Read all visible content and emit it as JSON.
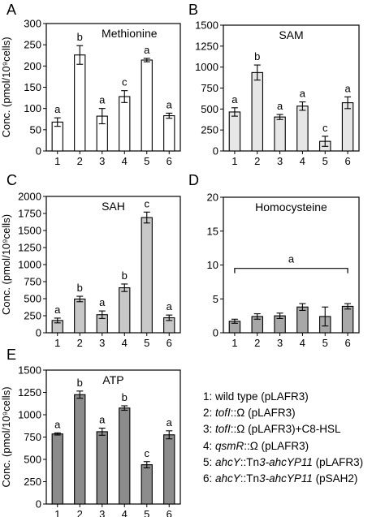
{
  "chart_data": [
    {
      "panel": "A",
      "type": "bar",
      "title": "Methionine",
      "categories": [
        "1",
        "2",
        "3",
        "4",
        "5",
        "6"
      ],
      "values": [
        68,
        226,
        82,
        128,
        214,
        83
      ],
      "errors": [
        10,
        22,
        18,
        14,
        4,
        6
      ],
      "letters": [
        "a",
        "b",
        "a",
        "c",
        "a",
        "a"
      ],
      "ylabel": "Conc. (pmol/10⁹cells)",
      "ylim": [
        0,
        300
      ],
      "yticks": [
        0,
        50,
        100,
        150,
        200,
        250,
        300
      ],
      "bar_color": "#ffffff",
      "grid": false
    },
    {
      "panel": "B",
      "type": "bar",
      "title": "SAM",
      "categories": [
        "1",
        "2",
        "3",
        "4",
        "5",
        "6"
      ],
      "values": [
        465,
        935,
        405,
        535,
        115,
        575
      ],
      "errors": [
        50,
        90,
        30,
        50,
        60,
        70
      ],
      "letters": [
        "a",
        "b",
        "a",
        "a",
        "c",
        "a"
      ],
      "ylabel": "",
      "ylim": [
        0,
        1500
      ],
      "yticks": [
        0,
        250,
        500,
        750,
        1000,
        1250,
        1500
      ],
      "bar_color": "#e6e6e6",
      "grid": false
    },
    {
      "panel": "C",
      "type": "bar",
      "title": "SAH",
      "categories": [
        "1",
        "2",
        "3",
        "4",
        "5",
        "6"
      ],
      "values": [
        180,
        495,
        265,
        660,
        1690,
        220
      ],
      "errors": [
        35,
        40,
        55,
        55,
        80,
        40
      ],
      "letters": [
        "a",
        "b",
        "a",
        "b",
        "c",
        "a"
      ],
      "ylabel": "Conc. (pmol/10⁹cells)",
      "ylim": [
        0,
        2000
      ],
      "yticks": [
        0,
        250,
        500,
        750,
        1000,
        1250,
        1500,
        1750,
        2000
      ],
      "bar_color": "#c8c8c8",
      "grid": false
    },
    {
      "panel": "D",
      "type": "bar",
      "title": "Homocysteine",
      "categories": [
        "1",
        "2",
        "3",
        "4",
        "5",
        "6"
      ],
      "values": [
        1.7,
        2.4,
        2.5,
        3.8,
        2.4,
        3.9
      ],
      "errors": [
        0.3,
        0.4,
        0.4,
        0.5,
        1.4,
        0.4
      ],
      "letters": [],
      "group_letter": "a",
      "ylabel": "",
      "ylim": [
        0,
        20
      ],
      "yticks": [
        0,
        5,
        10,
        15,
        20
      ],
      "bar_color": "#a8a8a8",
      "grid": false
    },
    {
      "panel": "E",
      "type": "bar",
      "title": "ATP",
      "categories": [
        "1",
        "2",
        "3",
        "4",
        "5",
        "6"
      ],
      "values": [
        785,
        1225,
        810,
        1075,
        440,
        775
      ],
      "errors": [
        12,
        40,
        40,
        25,
        35,
        45
      ],
      "letters": [
        "a",
        "b",
        "a",
        "b",
        "c",
        "a"
      ],
      "ylabel": "Conc. (pmol/10⁹cells)",
      "ylim": [
        0,
        1500
      ],
      "yticks": [
        0,
        250,
        500,
        750,
        1000,
        1250,
        1500
      ],
      "bar_color": "#8c8c8c",
      "grid": false
    }
  ],
  "legend": [
    {
      "num": "1:",
      "parts": [
        {
          "t": " wild type (pLAFR3)",
          "i": false
        }
      ]
    },
    {
      "num": "2:",
      "parts": [
        {
          "t": " tofI",
          "i": true
        },
        {
          "t": "::Ω (pLAFR3)",
          "i": false
        }
      ]
    },
    {
      "num": "3:",
      "parts": [
        {
          "t": " tofI",
          "i": true
        },
        {
          "t": "::Ω (pLAFR3)+C8-HSL",
          "i": false
        }
      ]
    },
    {
      "num": "4:",
      "parts": [
        {
          "t": " qsmR",
          "i": true
        },
        {
          "t": "::Ω (pLAFR3)",
          "i": false
        }
      ]
    },
    {
      "num": "5:",
      "parts": [
        {
          "t": " ahcY",
          "i": true
        },
        {
          "t": "::Tn",
          "i": false
        },
        {
          "t": "3-ahcYP11",
          "i": true
        },
        {
          "t": " (pLAFR3)",
          "i": false
        }
      ]
    },
    {
      "num": "6:",
      "parts": [
        {
          "t": " ahcY",
          "i": true
        },
        {
          "t": "::Tn",
          "i": false
        },
        {
          "t": "3-ahcYP11",
          "i": true
        },
        {
          "t": " (pSAH2)",
          "i": false
        }
      ]
    }
  ]
}
